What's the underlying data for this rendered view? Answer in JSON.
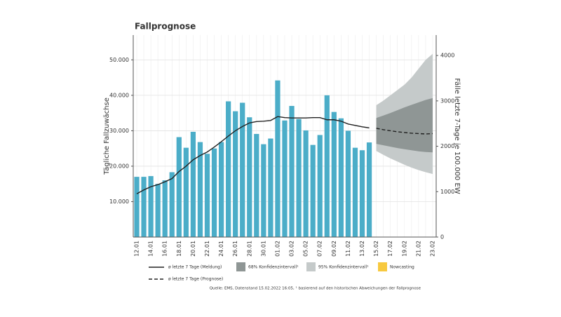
{
  "chart_data": {
    "type": "bar",
    "title": "Fallprognose",
    "ylabel": "Tägliche Fallzuwächse",
    "y2label": "Fälle letzte 7-Tage je 100.000 EW",
    "source": "Quelle: EMS, Datenstand 15.02.2022 16:05, ¹ basierend auf den historischen Abweichungen der Fallprognose",
    "categories": [
      "12.01",
      null,
      "14.01",
      null,
      "16.01",
      null,
      "18.01",
      null,
      "20.01",
      null,
      "22.01",
      null,
      "24.01",
      null,
      "26.01",
      null,
      "28.01",
      null,
      "30.01",
      null,
      "01.02",
      null,
      "03.02",
      null,
      "05.02",
      null,
      "07.02",
      null,
      "09.02",
      null,
      "11.02",
      null,
      "13.02",
      null,
      "15.02",
      null,
      "17.02",
      null,
      "19.02",
      null,
      "21.02",
      null,
      "23.02"
    ],
    "ylim": [
      0,
      57000
    ],
    "yticks": [
      {
        "value": 10000,
        "label": "10.000"
      },
      {
        "value": 20000,
        "label": "20.000"
      },
      {
        "value": 30000,
        "label": "30.000"
      },
      {
        "value": 40000,
        "label": "40.000"
      },
      {
        "value": 50000,
        "label": "50.000"
      }
    ],
    "y2lim": [
      0,
      4450
    ],
    "y2ticks": [
      0,
      1000,
      2000,
      3000,
      4000
    ],
    "grid": true,
    "series": [
      {
        "name": "Tägliche Fallzuwächse",
        "type": "bar",
        "color": "#4badc8",
        "values": [
          17000,
          17000,
          17200,
          15000,
          16000,
          18300,
          28200,
          25200,
          29700,
          26800,
          23500,
          25000,
          26800,
          38300,
          35500,
          37900,
          33800,
          29100,
          26200,
          27800,
          44200,
          32900,
          37000,
          33300,
          30100,
          26000,
          28800,
          40000,
          35300,
          33500,
          30000,
          25200,
          24500,
          26700,
          null,
          null,
          null,
          null,
          null,
          null,
          null,
          null,
          null
        ]
      },
      {
        "name": "95% Konfidenzintervall¹",
        "type": "band",
        "color": "#c5caca",
        "upper": [
          null,
          null,
          null,
          null,
          null,
          null,
          null,
          null,
          null,
          null,
          null,
          null,
          null,
          null,
          null,
          null,
          null,
          null,
          null,
          null,
          null,
          null,
          null,
          null,
          null,
          null,
          null,
          null,
          null,
          null,
          null,
          null,
          null,
          null,
          37200,
          38500,
          40000,
          41500,
          43000,
          45000,
          47500,
          50000,
          51700
        ],
        "lower": [
          null,
          null,
          null,
          null,
          null,
          null,
          null,
          null,
          null,
          null,
          null,
          null,
          null,
          null,
          null,
          null,
          null,
          null,
          null,
          null,
          null,
          null,
          null,
          null,
          null,
          null,
          null,
          null,
          null,
          null,
          null,
          null,
          null,
          null,
          24300,
          23200,
          22200,
          21300,
          20400,
          19600,
          18900,
          18300,
          17800
        ]
      },
      {
        "name": "68% Konfidenzintervall¹",
        "type": "band",
        "color": "#8f9695",
        "upper": [
          null,
          null,
          null,
          null,
          null,
          null,
          null,
          null,
          null,
          null,
          null,
          null,
          null,
          null,
          null,
          null,
          null,
          null,
          null,
          null,
          null,
          null,
          null,
          null,
          null,
          null,
          null,
          null,
          null,
          null,
          null,
          null,
          null,
          null,
          33600,
          34300,
          35000,
          35800,
          36600,
          37300,
          38000,
          38700,
          39200
        ],
        "lower": [
          null,
          null,
          null,
          null,
          null,
          null,
          null,
          null,
          null,
          null,
          null,
          null,
          null,
          null,
          null,
          null,
          null,
          null,
          null,
          null,
          null,
          null,
          null,
          null,
          null,
          null,
          null,
          null,
          null,
          null,
          null,
          null,
          null,
          null,
          26300,
          25900,
          25500,
          25100,
          24800,
          24500,
          24200,
          24000,
          23900
        ]
      },
      {
        "name": "Nowcasting",
        "type": "band",
        "color": "#f7c940",
        "upper": [
          null,
          null,
          null,
          null,
          null,
          null,
          null,
          null,
          null,
          null,
          null,
          null,
          null,
          null,
          null,
          null,
          null,
          null,
          null,
          null,
          null,
          null,
          null,
          null,
          null,
          null,
          null,
          null,
          null,
          null,
          null,
          null,
          null,
          null,
          null,
          null,
          null,
          null,
          null,
          null,
          null,
          null,
          null
        ],
        "lower": [
          null,
          null,
          null,
          null,
          null,
          null,
          null,
          null,
          null,
          null,
          null,
          null,
          null,
          null,
          null,
          null,
          null,
          null,
          null,
          null,
          null,
          null,
          null,
          null,
          null,
          null,
          null,
          null,
          null,
          null,
          null,
          null,
          null,
          null,
          null,
          null,
          null,
          null,
          null,
          null,
          null,
          null,
          null
        ]
      },
      {
        "name": "ø letzte 7 Tage (Meldung)",
        "type": "line",
        "color": "#222222",
        "dash": false,
        "values": [
          12200,
          13300,
          14200,
          14800,
          15600,
          16500,
          18500,
          20000,
          21800,
          23000,
          24000,
          25400,
          26900,
          28500,
          30000,
          31200,
          32200,
          32600,
          32700,
          32900,
          34000,
          33700,
          33600,
          33600,
          33600,
          33700,
          33700,
          33100,
          33100,
          32700,
          31900,
          31500,
          31100,
          30800,
          null,
          null,
          null,
          null,
          null,
          null,
          null,
          null,
          null
        ]
      },
      {
        "name": "ø letzte 7 Tage (Prognose)",
        "type": "line",
        "color": "#222222",
        "dash": true,
        "values": [
          null,
          null,
          null,
          null,
          null,
          null,
          null,
          null,
          null,
          null,
          null,
          null,
          null,
          null,
          null,
          null,
          null,
          null,
          null,
          null,
          null,
          null,
          null,
          null,
          null,
          null,
          null,
          null,
          null,
          null,
          null,
          null,
          null,
          null,
          30700,
          30300,
          30000,
          29700,
          29500,
          29300,
          29200,
          29100,
          29200
        ]
      }
    ]
  }
}
